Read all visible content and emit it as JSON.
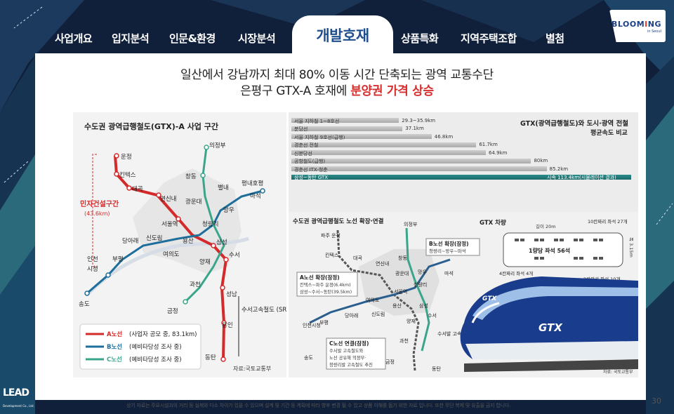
{
  "nav": {
    "items": [
      "사업개요",
      "입지분석",
      "인문&환경",
      "시장분석",
      "개발호재",
      "상품특화",
      "지역주택조합",
      "별첨"
    ],
    "active": "개발호재"
  },
  "logo": {
    "text_pre": "BLOOM",
    "text_mid": "I",
    "text_post": "NG",
    "sub": "in Seoul"
  },
  "headline": {
    "line1": "일산에서 강남까지 최대 80% 이동 시간 단축되는 광역 교통수단",
    "line2_pre": "은평구 GTX-A 호재에",
    "line2_highlight": "분양권 가격 상승"
  },
  "map1": {
    "title": "수도권 광역급행철도(GTX)-A 사업 구간",
    "private_label": "민자건설구간",
    "private_sub": "(43.6km)",
    "stations": [
      "운정",
      "킨텍스",
      "대곡",
      "연신내",
      "서울역",
      "삼성",
      "수서",
      "성남",
      "용인",
      "동탄",
      "의정부",
      "창동",
      "광운대",
      "망우",
      "청량리",
      "별내",
      "평내호평",
      "마석",
      "당아래",
      "신도림",
      "여의도",
      "용산",
      "부평",
      "인천",
      "시청",
      "송도",
      "양재",
      "과천",
      "금정"
    ],
    "note": "수서고속철도 (SRT)와 선로 공동사용 예정",
    "legend": [
      {
        "name": "A노선",
        "desc": "(사업자 공모 중, 83.1km)",
        "color": "#d42a2a"
      },
      {
        "name": "B노선",
        "desc": "(예비타당성 조사 중)",
        "color": "#1d6e9a"
      },
      {
        "name": "C노선",
        "desc": "(예비타당성 조사 중)",
        "color": "#3aa58a"
      }
    ],
    "source": "자료:국토교통부"
  },
  "speed_chart": {
    "title": "GTX(광역급행철도)와 도시·광역 전철",
    "subtitle": "평균속도 비교",
    "rows": [
      {
        "label": "서울 지하철 1~8호선",
        "value": "29.3~35.9km",
        "speed": 35.9
      },
      {
        "label": "분당선",
        "value": "37.1km",
        "speed": 37.1
      },
      {
        "label": "서울 지하철 9호선(급행)",
        "value": "46.8km",
        "speed": 46.8
      },
      {
        "label": "경춘선 전철",
        "value": "61.7km",
        "speed": 61.7
      },
      {
        "label": "신분당선",
        "value": "64.9km",
        "speed": 64.9
      },
      {
        "label": "공항철도(급행)",
        "value": "80km",
        "speed": 80
      },
      {
        "label": "경춘선 ITX-청춘",
        "value": "85.2km",
        "speed": 85.2
      },
      {
        "label": "삼성~동탄 GTX",
        "value": "시속 113.4km(시뮬레이션 결과)",
        "speed": 113.4
      }
    ]
  },
  "map2": {
    "title": "수도권 광역급행철도 노선 확장·연결",
    "b_ext_title": "B노선 확장(잠정)",
    "b_ext_desc": "청량리~망우~마석",
    "a_ext_title": "A노선 확장(잠정)",
    "a_ext_desc1": "킨텍스~파주 운정(6.4km)",
    "a_ext_desc2": "삼성~수서~동탄(39.5km)",
    "c_ext_title": "C노선 연결(잠정)",
    "c_ext_desc1": "수서발 고속철도와",
    "c_ext_desc2": "노선 공유해 의정부·",
    "c_ext_desc3": "청량리발 고속철도 추진",
    "stations": [
      "파주 운정",
      "의정부",
      "킨텍스",
      "대곡",
      "연신내",
      "창동",
      "광운대",
      "망우",
      "마석",
      "서울역",
      "청량리",
      "여의도",
      "용산",
      "삼성",
      "수서",
      "당아래",
      "신도림",
      "양재",
      "부평",
      "과천",
      "인천시청",
      "송도",
      "금정",
      "수서발 고속철도",
      "동탄"
    ]
  },
  "gtx_car": {
    "title": "GTX 차량",
    "length": "길이 20m",
    "width": "폭 3.15m",
    "seats_10": "10칸짜리 좌석 27개",
    "seats_1": "1량당 좌석 56석",
    "seats_4": "4칸짜리 좌석 4개",
    "seats_2": "2칸짜리 좌석 10개",
    "train_mark": "GTX",
    "source": "자료: 국토교통부"
  },
  "footer": "상기 자료는 주요시설과의 거리 등 실제와 다소 차이가 있을 수 있으며 설계 및 기간 등 계획에 따라 향후 변경 될 수 있고 상품 이해를 돕기 위한 자료 입니다. 또한 무단 복제 및 유출을 금지 합니다.",
  "page_number": "30",
  "corner_logo": {
    "text": "LEAD",
    "sub": "Development Co., Ltd."
  }
}
